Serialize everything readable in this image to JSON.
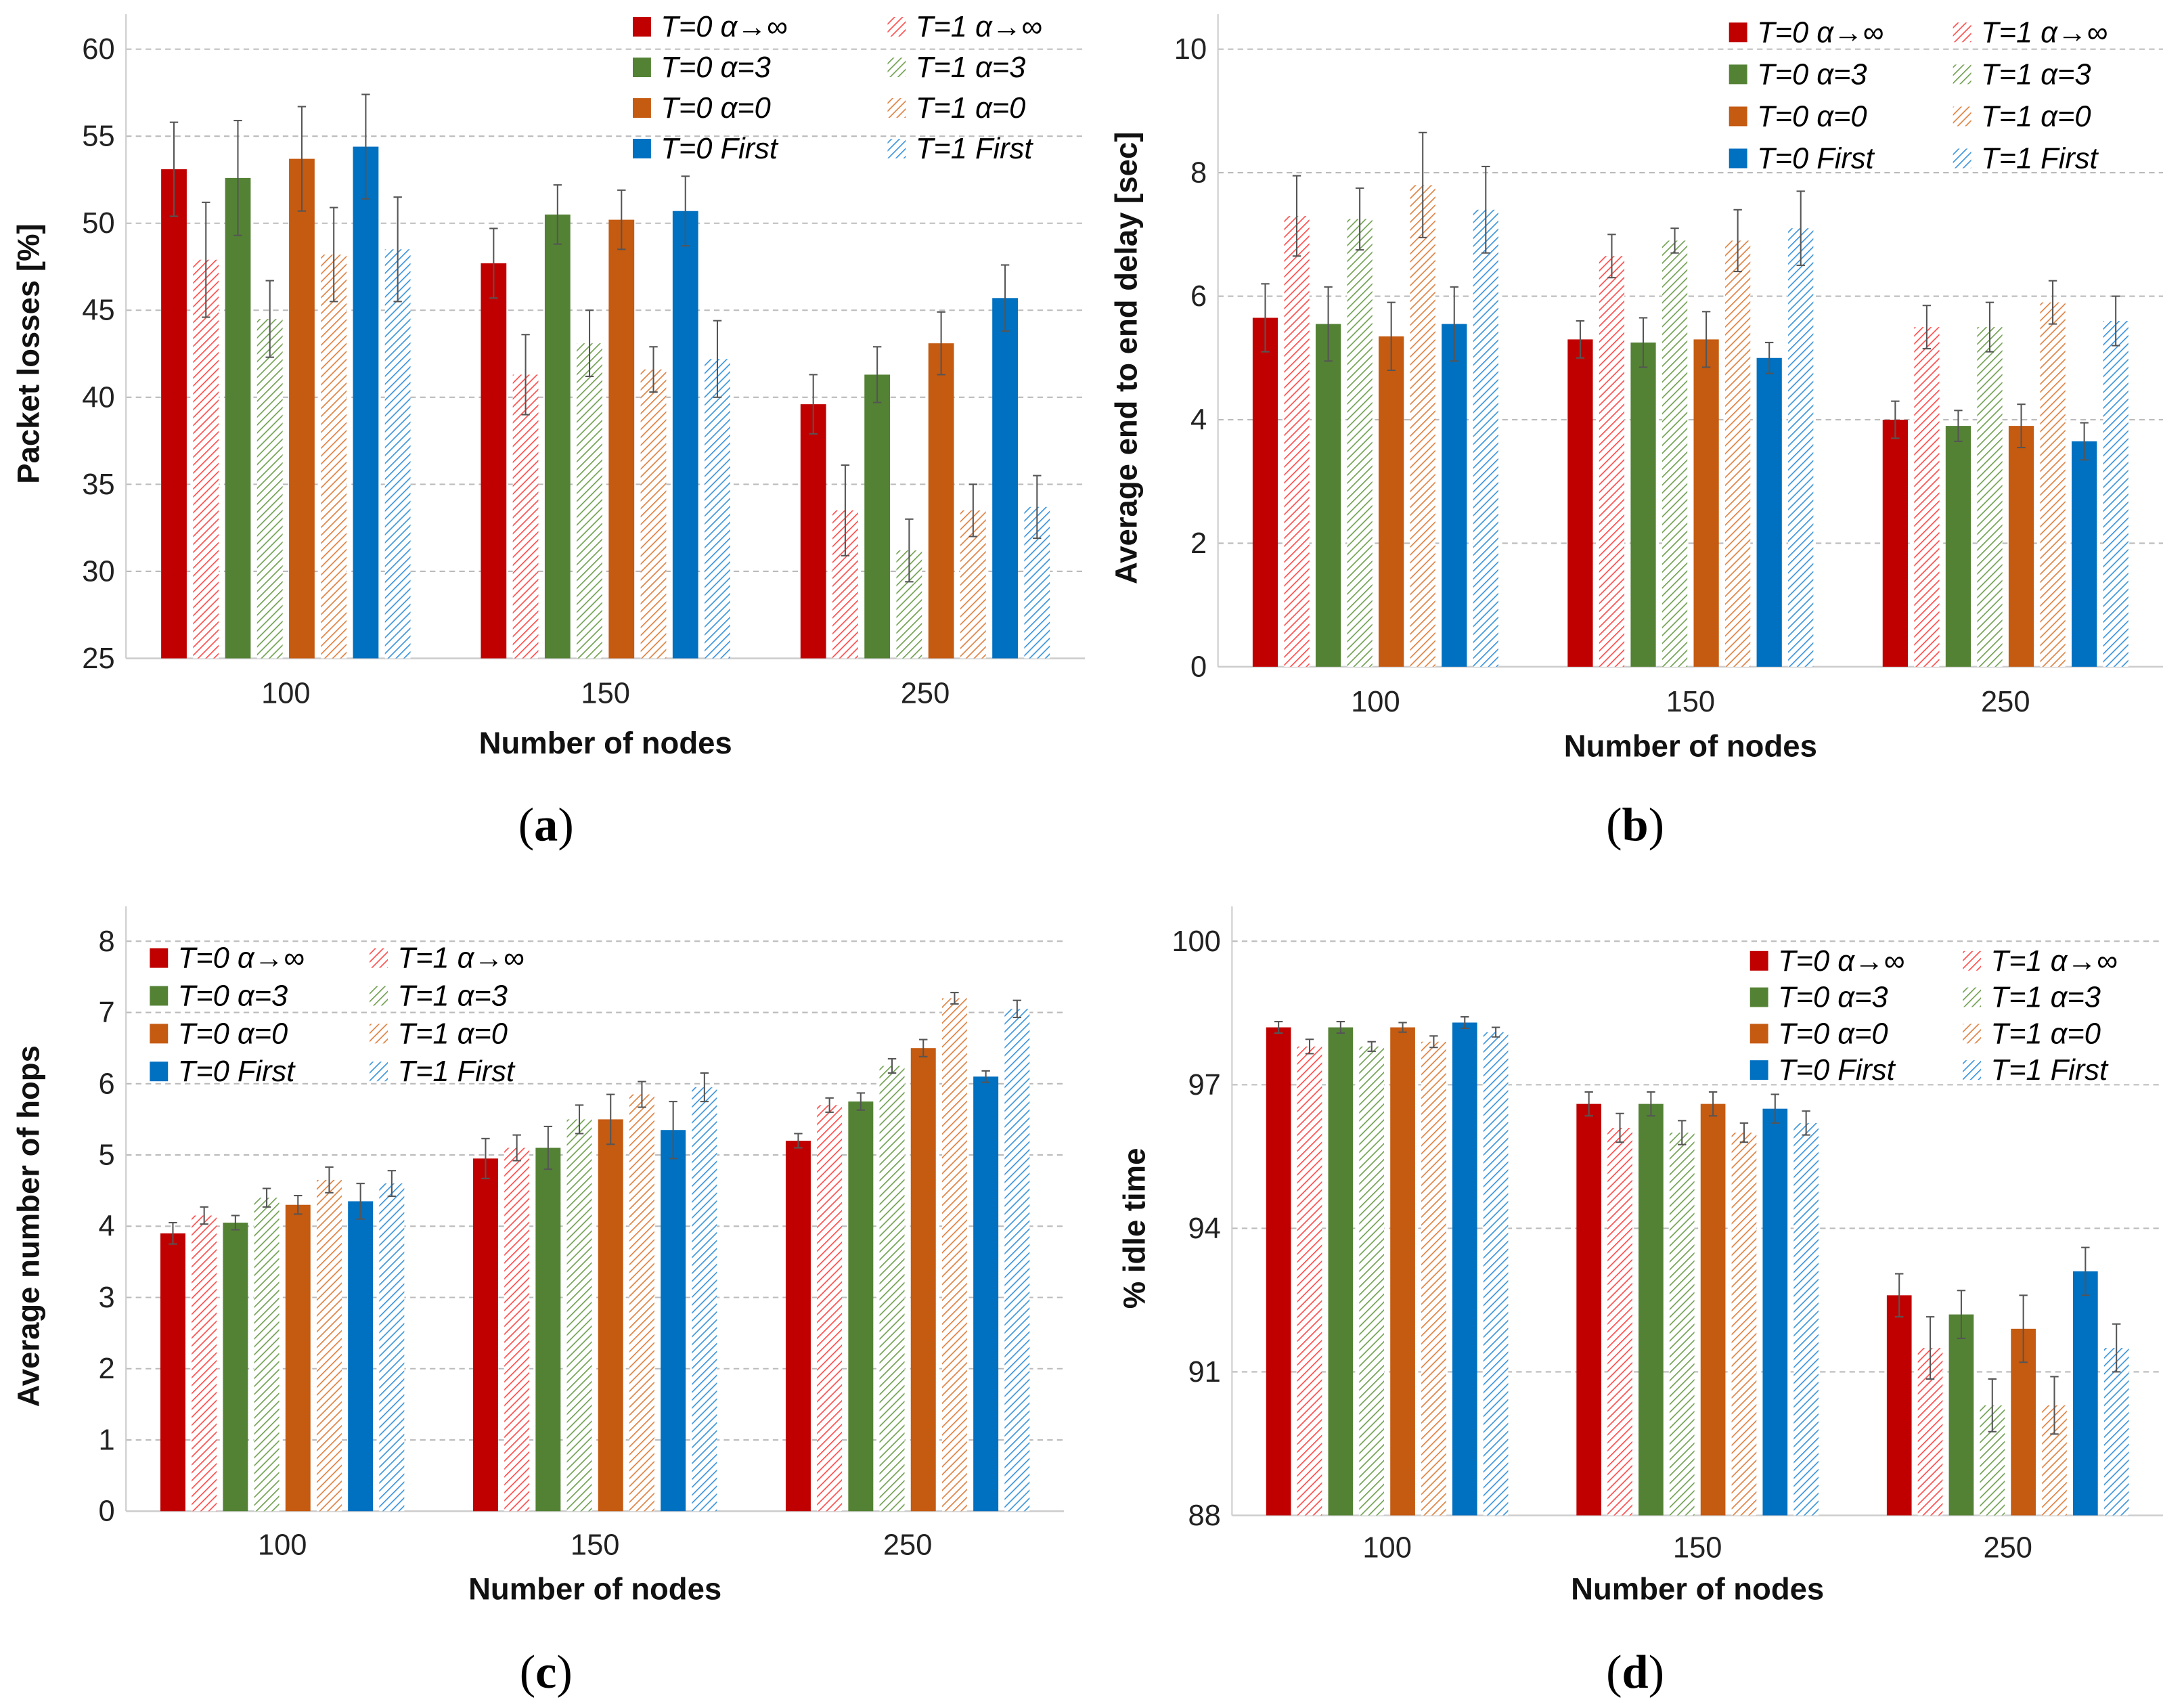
{
  "legend_labels": [
    "T=0  α→∞",
    "T=1 α→∞",
    "T=0 α=3",
    "T=1 α=3",
    "T=0 α=0",
    "T=1 α=0",
    "T=0 First",
    "T=1 First"
  ],
  "colors": {
    "red": "#C00000",
    "green": "#548235",
    "orange": "#C55A11",
    "blue": "#0070C0",
    "red_hatch": "#FF4B4B",
    "green_hatch": "#70A050",
    "orange_hatch": "#E08040",
    "blue_hatch": "#3A94DC"
  },
  "chart_data": [
    {
      "type": "bar",
      "caption_letter": "a",
      "title": "",
      "xlabel": "Number of nodes",
      "ylabel": "Packet losses [%]",
      "categories": [
        "100",
        "150",
        "250"
      ],
      "ylim": [
        25,
        60
      ],
      "yticks": [
        25,
        30,
        35,
        40,
        45,
        50,
        55,
        60
      ],
      "grid": true,
      "legend_position": "top-right",
      "series": [
        {
          "name": "T=0  α→∞",
          "values": [
            53.1,
            47.7,
            39.6
          ],
          "errors": [
            2.7,
            2.0,
            1.7
          ]
        },
        {
          "name": "T=1 α→∞",
          "values": [
            47.9,
            41.3,
            33.5
          ],
          "errors": [
            3.3,
            2.3,
            2.6
          ]
        },
        {
          "name": "T=0 α=3",
          "values": [
            52.6,
            50.5,
            41.3
          ],
          "errors": [
            3.3,
            1.7,
            1.6
          ]
        },
        {
          "name": "T=1 α=3",
          "values": [
            44.5,
            43.1,
            31.2
          ],
          "errors": [
            2.2,
            1.9,
            1.8
          ]
        },
        {
          "name": "T=0 α=0",
          "values": [
            53.7,
            50.2,
            43.1
          ],
          "errors": [
            3.0,
            1.7,
            1.8
          ]
        },
        {
          "name": "T=1 α=0",
          "values": [
            48.2,
            41.6,
            33.5
          ],
          "errors": [
            2.7,
            1.3,
            1.5
          ]
        },
        {
          "name": "T=0 First",
          "values": [
            54.4,
            50.7,
            45.7
          ],
          "errors": [
            3.0,
            2.0,
            1.9
          ]
        },
        {
          "name": "T=1 First",
          "values": [
            48.5,
            42.2,
            33.7
          ],
          "errors": [
            3.0,
            2.2,
            1.8
          ]
        }
      ]
    },
    {
      "type": "bar",
      "caption_letter": "b",
      "title": "",
      "xlabel": "Number of nodes",
      "ylabel": "Average end to end delay [sec]",
      "categories": [
        "100",
        "150",
        "250"
      ],
      "ylim": [
        0,
        10
      ],
      "yticks": [
        0,
        2,
        4,
        6,
        8,
        10
      ],
      "grid": true,
      "legend_position": "top-right",
      "series": [
        {
          "name": "T=0  α→∞",
          "values": [
            5.65,
            5.3,
            4.0
          ],
          "errors": [
            0.55,
            0.3,
            0.3
          ]
        },
        {
          "name": "T=1 α→∞",
          "values": [
            7.3,
            6.65,
            5.5
          ],
          "errors": [
            0.65,
            0.35,
            0.35
          ]
        },
        {
          "name": "T=0 α=3",
          "values": [
            5.55,
            5.25,
            3.9
          ],
          "errors": [
            0.6,
            0.4,
            0.25
          ]
        },
        {
          "name": "T=1 α=3",
          "values": [
            7.25,
            6.9,
            5.5
          ],
          "errors": [
            0.5,
            0.2,
            0.4
          ]
        },
        {
          "name": "T=0 α=0",
          "values": [
            5.35,
            5.3,
            3.9
          ],
          "errors": [
            0.55,
            0.45,
            0.35
          ]
        },
        {
          "name": "T=1 α=0",
          "values": [
            7.8,
            6.9,
            5.9
          ],
          "errors": [
            0.85,
            0.5,
            0.35
          ]
        },
        {
          "name": "T=0 First",
          "values": [
            5.55,
            5.0,
            3.65
          ],
          "errors": [
            0.6,
            0.25,
            0.3
          ]
        },
        {
          "name": "T=1 First",
          "values": [
            7.4,
            7.1,
            5.6
          ],
          "errors": [
            0.7,
            0.6,
            0.4
          ]
        }
      ]
    },
    {
      "type": "bar",
      "caption_letter": "c",
      "title": "",
      "xlabel": "Number of nodes",
      "ylabel": "Average number of hops",
      "categories": [
        "100",
        "150",
        "250"
      ],
      "ylim": [
        0,
        8
      ],
      "yticks": [
        0,
        1,
        2,
        3,
        4,
        5,
        6,
        7,
        8
      ],
      "grid": true,
      "legend_position": "top-left",
      "series": [
        {
          "name": "T=0  α→∞",
          "values": [
            3.9,
            4.95,
            5.2
          ],
          "errors": [
            0.15,
            0.28,
            0.1
          ]
        },
        {
          "name": "T=1 α→∞",
          "values": [
            4.15,
            5.1,
            5.7
          ],
          "errors": [
            0.12,
            0.18,
            0.1
          ]
        },
        {
          "name": "T=0 α=3",
          "values": [
            4.05,
            5.1,
            5.75
          ],
          "errors": [
            0.1,
            0.3,
            0.12
          ]
        },
        {
          "name": "T=1 α=3",
          "values": [
            4.4,
            5.5,
            6.25
          ],
          "errors": [
            0.13,
            0.2,
            0.1
          ]
        },
        {
          "name": "T=0 α=0",
          "values": [
            4.3,
            5.5,
            6.5
          ],
          "errors": [
            0.13,
            0.35,
            0.12
          ]
        },
        {
          "name": "T=1 α=0",
          "values": [
            4.65,
            5.85,
            7.2
          ],
          "errors": [
            0.18,
            0.18,
            0.08
          ]
        },
        {
          "name": "T=0 First",
          "values": [
            4.35,
            5.35,
            6.1
          ],
          "errors": [
            0.25,
            0.4,
            0.08
          ]
        },
        {
          "name": "T=1 First",
          "values": [
            4.6,
            5.95,
            7.05
          ],
          "errors": [
            0.18,
            0.2,
            0.12
          ]
        }
      ]
    },
    {
      "type": "bar",
      "caption_letter": "d",
      "title": "",
      "xlabel": "Number of nodes",
      "ylabel": "% idle time",
      "categories": [
        "100",
        "150",
        "250"
      ],
      "ylim": [
        88,
        100
      ],
      "yticks": [
        88,
        91,
        94,
        97,
        100
      ],
      "grid": true,
      "legend_position": "top-right",
      "series": [
        {
          "name": "T=0  α→∞",
          "values": [
            98.2,
            96.6,
            92.6
          ],
          "errors": [
            0.12,
            0.25,
            0.45
          ]
        },
        {
          "name": "T=1 α→∞",
          "values": [
            97.8,
            96.1,
            91.5
          ],
          "errors": [
            0.15,
            0.3,
            0.65
          ]
        },
        {
          "name": "T=0 α=3",
          "values": [
            98.2,
            96.6,
            92.2
          ],
          "errors": [
            0.12,
            0.25,
            0.5
          ]
        },
        {
          "name": "T=1 α=3",
          "values": [
            97.8,
            96.0,
            90.3
          ],
          "errors": [
            0.1,
            0.25,
            0.55
          ]
        },
        {
          "name": "T=0 α=0",
          "values": [
            98.2,
            96.6,
            91.9
          ],
          "errors": [
            0.1,
            0.25,
            0.7
          ]
        },
        {
          "name": "T=1 α=0",
          "values": [
            97.9,
            96.0,
            90.3
          ],
          "errors": [
            0.12,
            0.2,
            0.6
          ]
        },
        {
          "name": "T=0 First",
          "values": [
            98.3,
            96.5,
            93.1
          ],
          "errors": [
            0.12,
            0.3,
            0.5
          ]
        },
        {
          "name": "T=1 First",
          "values": [
            98.1,
            96.2,
            91.5
          ],
          "errors": [
            0.1,
            0.25,
            0.5
          ]
        }
      ]
    }
  ]
}
